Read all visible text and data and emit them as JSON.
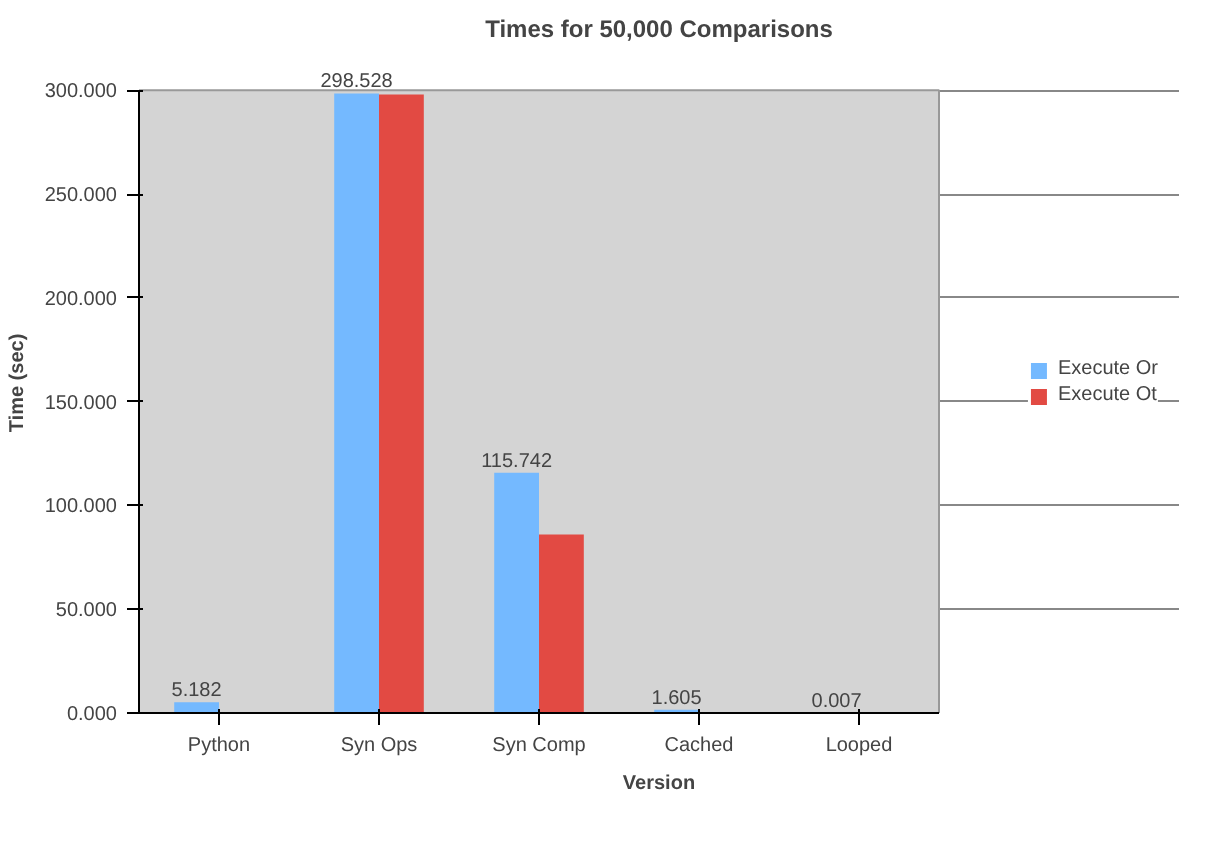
{
  "chart_data": {
    "type": "bar",
    "title": "Times for 50,000 Comparisons",
    "xlabel": "Version",
    "ylabel": "Time (sec)",
    "categories": [
      "Python",
      "Syn Ops",
      "Syn Comp",
      "Cached",
      "Looped"
    ],
    "series": [
      {
        "name": "Execute Or",
        "color": "#74b9ff",
        "values": [
          5.182,
          298.528,
          115.742,
          1.605,
          0.007
        ],
        "value_labels": [
          "5.182",
          "298.528",
          "115.742",
          "1.605",
          "0.007"
        ]
      },
      {
        "name": "Execute Ot",
        "color": "#e24a43",
        "values": [
          null,
          298,
          86,
          null,
          null
        ]
      }
    ],
    "ylim": [
      0,
      300
    ],
    "yticks": [
      {
        "value": 0,
        "label": "0.000"
      },
      {
        "value": 50,
        "label": "50.000"
      },
      {
        "value": 100,
        "label": "100.000"
      },
      {
        "value": 150,
        "label": "150.000"
      },
      {
        "value": 200,
        "label": "200.000"
      },
      {
        "value": 250,
        "label": "250.000"
      },
      {
        "value": 300,
        "label": "300.000"
      }
    ],
    "grid": "y",
    "legend": "right"
  }
}
